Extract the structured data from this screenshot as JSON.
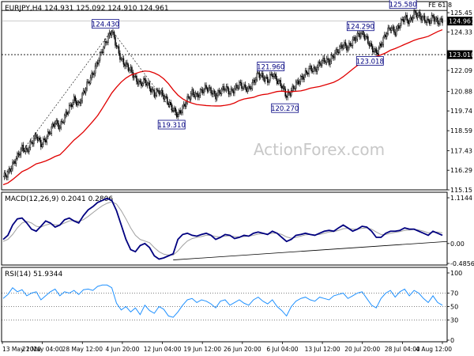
{
  "chart_data": [
    {
      "type": "candlestick",
      "title": "EURJPY,H4  124.931 125.092 124.910 124.961",
      "watermark": "ActionForex.com",
      "x_labels": [
        "13 May 2020",
        "21 May 04:00",
        "28 May 12:00",
        "4 Jun 20:00",
        "12 Jun 04:00",
        "19 Jun 12:00",
        "26 Jun 20:00",
        "6 Jul 04:00",
        "13 Jul 12:00",
        "20 Jul 20:00",
        "28 Jul 04:00",
        "4 Aug 12:00"
      ],
      "y_ticks": [
        125.45,
        124.33,
        123.01,
        122.09,
        120.88,
        119.74,
        118.59,
        117.43,
        116.29,
        115.15
      ],
      "ylim": [
        115.15,
        125.45
      ],
      "horizontal_lines": [
        125.58,
        123.01
      ],
      "current_price": 124.961,
      "price_tags": [
        "124.961",
        "123.010"
      ],
      "annotations": [
        {
          "label": "124.430",
          "value": 124.43
        },
        {
          "label": "119.310",
          "value": 119.31
        },
        {
          "label": "121.960",
          "value": 121.96
        },
        {
          "label": "120.270",
          "value": 120.27
        },
        {
          "label": "124.290",
          "value": 124.29
        },
        {
          "label": "123.018",
          "value": 123.018
        },
        {
          "label": "125.580",
          "value": 125.58
        },
        {
          "label": "FE 61.8",
          "value": 125.58
        }
      ],
      "close_path": [
        115.9,
        116.1,
        116.6,
        117.1,
        117.6,
        117.4,
        117.9,
        118.3,
        117.8,
        118.1,
        118.6,
        119.1,
        118.8,
        119.4,
        119.9,
        120.4,
        120.1,
        120.8,
        121.4,
        121.9,
        122.6,
        123.3,
        123.9,
        124.4,
        123.5,
        122.7,
        122.4,
        122.1,
        121.6,
        121.3,
        121.5,
        121.1,
        120.7,
        120.9,
        120.6,
        120.2,
        119.8,
        119.5,
        119.9,
        120.4,
        120.8,
        120.6,
        120.9,
        121.1,
        120.9,
        120.6,
        120.9,
        121.1,
        120.8,
        121.0,
        121.3,
        121.1,
        121.0,
        121.4,
        121.9,
        121.7,
        121.5,
        121.9,
        121.5,
        121.2,
        120.6,
        120.9,
        121.3,
        121.6,
        121.9,
        122.2,
        122.1,
        122.5,
        122.7,
        122.6,
        123.0,
        123.3,
        123.6,
        123.4,
        123.8,
        124.1,
        124.3,
        123.9,
        123.4,
        123.1,
        123.6,
        124.2,
        124.6,
        124.3,
        124.8,
        125.2,
        124.9,
        125.4,
        125.3,
        125.1,
        124.9,
        125.2,
        124.9,
        125.0
      ]
    },
    {
      "type": "line",
      "title": "MACD(12,26,9) 0.2041 0.2806",
      "y_ticks": [
        1.1144,
        0.0,
        -0.4856
      ],
      "ylim": [
        -0.4856,
        1.1144
      ],
      "series": [
        {
          "name": "MACD",
          "values": [
            0.1,
            0.2,
            0.45,
            0.6,
            0.62,
            0.5,
            0.35,
            0.3,
            0.42,
            0.55,
            0.5,
            0.4,
            0.45,
            0.58,
            0.62,
            0.55,
            0.5,
            0.68,
            0.82,
            0.9,
            1.0,
            1.05,
            1.1,
            1.05,
            0.8,
            0.45,
            0.1,
            -0.15,
            -0.2,
            -0.05,
            0.0,
            -0.1,
            -0.3,
            -0.38,
            -0.35,
            -0.3,
            -0.25,
            0.1,
            0.22,
            0.25,
            0.2,
            0.18,
            0.22,
            0.25,
            0.2,
            0.1,
            0.15,
            0.22,
            0.2,
            0.12,
            0.15,
            0.2,
            0.18,
            0.25,
            0.28,
            0.25,
            0.22,
            0.3,
            0.25,
            0.15,
            0.05,
            0.1,
            0.2,
            0.22,
            0.25,
            0.22,
            0.2,
            0.25,
            0.3,
            0.32,
            0.3,
            0.38,
            0.45,
            0.38,
            0.3,
            0.35,
            0.42,
            0.4,
            0.3,
            0.15,
            0.15,
            0.25,
            0.3,
            0.3,
            0.32,
            0.38,
            0.35,
            0.35,
            0.3,
            0.25,
            0.2,
            0.3,
            0.25,
            0.2
          ]
        },
        {
          "name": "Signal",
          "values": [
            0.05,
            0.1,
            0.22,
            0.38,
            0.5,
            0.54,
            0.5,
            0.42,
            0.4,
            0.45,
            0.48,
            0.46,
            0.45,
            0.5,
            0.55,
            0.56,
            0.54,
            0.58,
            0.66,
            0.75,
            0.84,
            0.92,
            0.98,
            1.02,
            0.96,
            0.8,
            0.6,
            0.38,
            0.2,
            0.1,
            0.06,
            0.02,
            -0.1,
            -0.2,
            -0.26,
            -0.28,
            -0.28,
            -0.18,
            -0.05,
            0.06,
            0.12,
            0.15,
            0.17,
            0.2,
            0.2,
            0.17,
            0.16,
            0.18,
            0.19,
            0.17,
            0.16,
            0.17,
            0.18,
            0.2,
            0.23,
            0.24,
            0.23,
            0.25,
            0.25,
            0.22,
            0.16,
            0.13,
            0.15,
            0.18,
            0.21,
            0.22,
            0.21,
            0.22,
            0.25,
            0.28,
            0.29,
            0.32,
            0.36,
            0.37,
            0.35,
            0.35,
            0.37,
            0.38,
            0.35,
            0.28,
            0.22,
            0.22,
            0.25,
            0.27,
            0.29,
            0.32,
            0.33,
            0.34,
            0.33,
            0.3,
            0.26,
            0.27,
            0.28,
            0.26
          ]
        }
      ],
      "trendline": [
        [
          36,
          -0.4
        ],
        [
          93,
          0.05
        ]
      ]
    },
    {
      "type": "line",
      "title": "RSI(14) 51.9344",
      "y_ticks": [
        100,
        70,
        50,
        30,
        0
      ],
      "ylim": [
        0,
        100
      ],
      "series": [
        {
          "name": "RSI(14)",
          "values": [
            62,
            68,
            78,
            72,
            75,
            66,
            70,
            72,
            60,
            66,
            72,
            76,
            66,
            72,
            70,
            74,
            68,
            75,
            76,
            74,
            80,
            82,
            82,
            78,
            55,
            45,
            50,
            42,
            48,
            38,
            52,
            44,
            40,
            50,
            46,
            36,
            34,
            42,
            52,
            60,
            62,
            56,
            60,
            58,
            54,
            48,
            58,
            60,
            52,
            56,
            60,
            55,
            52,
            60,
            64,
            58,
            54,
            60,
            50,
            44,
            36,
            50,
            58,
            62,
            64,
            60,
            58,
            64,
            62,
            60,
            66,
            68,
            70,
            62,
            66,
            70,
            72,
            62,
            52,
            48,
            62,
            70,
            74,
            64,
            72,
            76,
            66,
            74,
            70,
            62,
            56,
            66,
            56,
            52
          ]
        }
      ]
    }
  ]
}
